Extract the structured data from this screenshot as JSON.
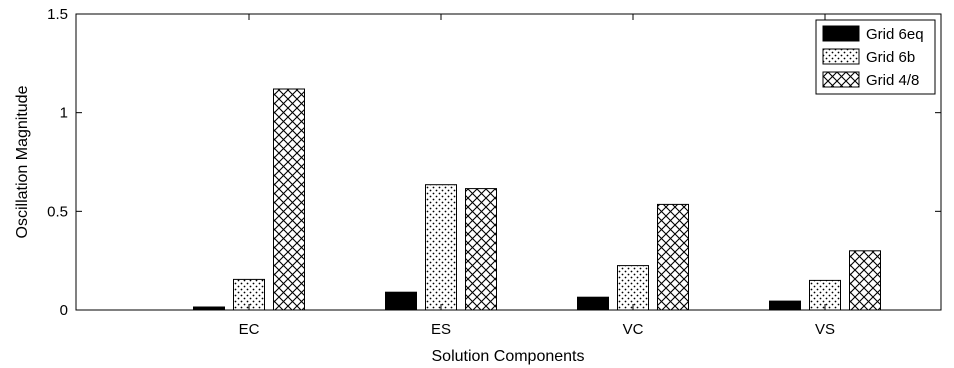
{
  "chart_data": {
    "type": "bar",
    "title": "",
    "xlabel": "Solution Components",
    "ylabel": "Oscillation Magnitude",
    "categories": [
      "EC",
      "ES",
      "VC",
      "VS"
    ],
    "ylim": [
      0,
      1.5
    ],
    "yticks": [
      "0",
      "0.5",
      "1",
      "1.5"
    ],
    "grid": false,
    "legend_position": "top-right",
    "series": [
      {
        "name": "Grid 6eq",
        "pattern": "solid-black",
        "values": [
          0.015,
          0.09,
          0.065,
          0.045
        ]
      },
      {
        "name": "Grid 6b",
        "pattern": "dots",
        "values": [
          0.155,
          0.635,
          0.225,
          0.15
        ]
      },
      {
        "name": "Grid 4/8",
        "pattern": "crosshatch",
        "values": [
          1.12,
          0.615,
          0.535,
          0.3
        ]
      }
    ]
  }
}
